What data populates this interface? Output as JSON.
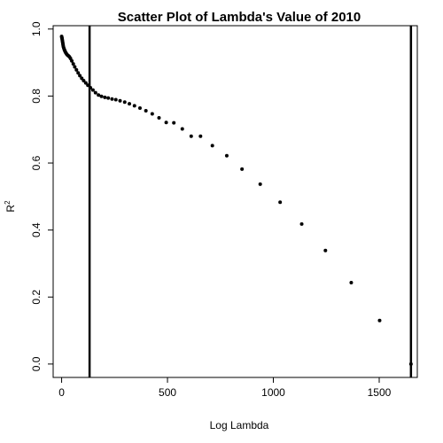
{
  "chart_data": {
    "type": "scatter",
    "title": "Scatter Plot of Lambda's Value of 2010",
    "xlabel": "Log Lambda",
    "ylabel": "R",
    "ylabel_superscript": "2",
    "xlim": [
      -40,
      1680
    ],
    "ylim": [
      -0.04,
      1.01
    ],
    "x_ticks": [
      0,
      500,
      1000,
      1500
    ],
    "y_ticks": [
      0.0,
      0.2,
      0.4,
      0.6,
      0.8,
      1.0
    ],
    "x_tick_labels": [
      "0",
      "500",
      "1000",
      "1500"
    ],
    "y_tick_labels": [
      "0.0",
      "0.2",
      "0.4",
      "0.6",
      "0.8",
      "1.0"
    ],
    "vlines": [
      132,
      1650
    ],
    "points": [
      {
        "x": 0,
        "y": 0.978
      },
      {
        "x": 1,
        "y": 0.975
      },
      {
        "x": 2,
        "y": 0.972
      },
      {
        "x": 3,
        "y": 0.968
      },
      {
        "x": 4,
        "y": 0.964
      },
      {
        "x": 5,
        "y": 0.96
      },
      {
        "x": 6,
        "y": 0.956
      },
      {
        "x": 7,
        "y": 0.952
      },
      {
        "x": 8,
        "y": 0.948
      },
      {
        "x": 10,
        "y": 0.944
      },
      {
        "x": 12,
        "y": 0.94
      },
      {
        "x": 14,
        "y": 0.937
      },
      {
        "x": 16,
        "y": 0.934
      },
      {
        "x": 18,
        "y": 0.931
      },
      {
        "x": 21,
        "y": 0.928
      },
      {
        "x": 24,
        "y": 0.925
      },
      {
        "x": 28,
        "y": 0.922
      },
      {
        "x": 32,
        "y": 0.92
      },
      {
        "x": 37,
        "y": 0.917
      },
      {
        "x": 42,
        "y": 0.912
      },
      {
        "x": 48,
        "y": 0.905
      },
      {
        "x": 55,
        "y": 0.896
      },
      {
        "x": 62,
        "y": 0.887
      },
      {
        "x": 70,
        "y": 0.878
      },
      {
        "x": 78,
        "y": 0.869
      },
      {
        "x": 86,
        "y": 0.861
      },
      {
        "x": 95,
        "y": 0.853
      },
      {
        "x": 104,
        "y": 0.846
      },
      {
        "x": 114,
        "y": 0.839
      },
      {
        "x": 124,
        "y": 0.832
      },
      {
        "x": 136,
        "y": 0.825
      },
      {
        "x": 148,
        "y": 0.818
      },
      {
        "x": 160,
        "y": 0.81
      },
      {
        "x": 174,
        "y": 0.803
      },
      {
        "x": 188,
        "y": 0.799
      },
      {
        "x": 204,
        "y": 0.796
      },
      {
        "x": 220,
        "y": 0.794
      },
      {
        "x": 238,
        "y": 0.791
      },
      {
        "x": 256,
        "y": 0.789
      },
      {
        "x": 276,
        "y": 0.786
      },
      {
        "x": 298,
        "y": 0.782
      },
      {
        "x": 320,
        "y": 0.777
      },
      {
        "x": 344,
        "y": 0.771
      },
      {
        "x": 370,
        "y": 0.764
      },
      {
        "x": 398,
        "y": 0.756
      },
      {
        "x": 428,
        "y": 0.747
      },
      {
        "x": 460,
        "y": 0.735
      },
      {
        "x": 494,
        "y": 0.721
      },
      {
        "x": 530,
        "y": 0.72
      },
      {
        "x": 570,
        "y": 0.702
      },
      {
        "x": 612,
        "y": 0.68
      },
      {
        "x": 656,
        "y": 0.68
      },
      {
        "x": 712,
        "y": 0.652
      },
      {
        "x": 780,
        "y": 0.622
      },
      {
        "x": 852,
        "y": 0.582
      },
      {
        "x": 938,
        "y": 0.537
      },
      {
        "x": 1032,
        "y": 0.483
      },
      {
        "x": 1134,
        "y": 0.418
      },
      {
        "x": 1246,
        "y": 0.339
      },
      {
        "x": 1368,
        "y": 0.243
      },
      {
        "x": 1502,
        "y": 0.13
      },
      {
        "x": 1650,
        "y": 0.0
      }
    ],
    "legend": "none",
    "grid": false
  }
}
